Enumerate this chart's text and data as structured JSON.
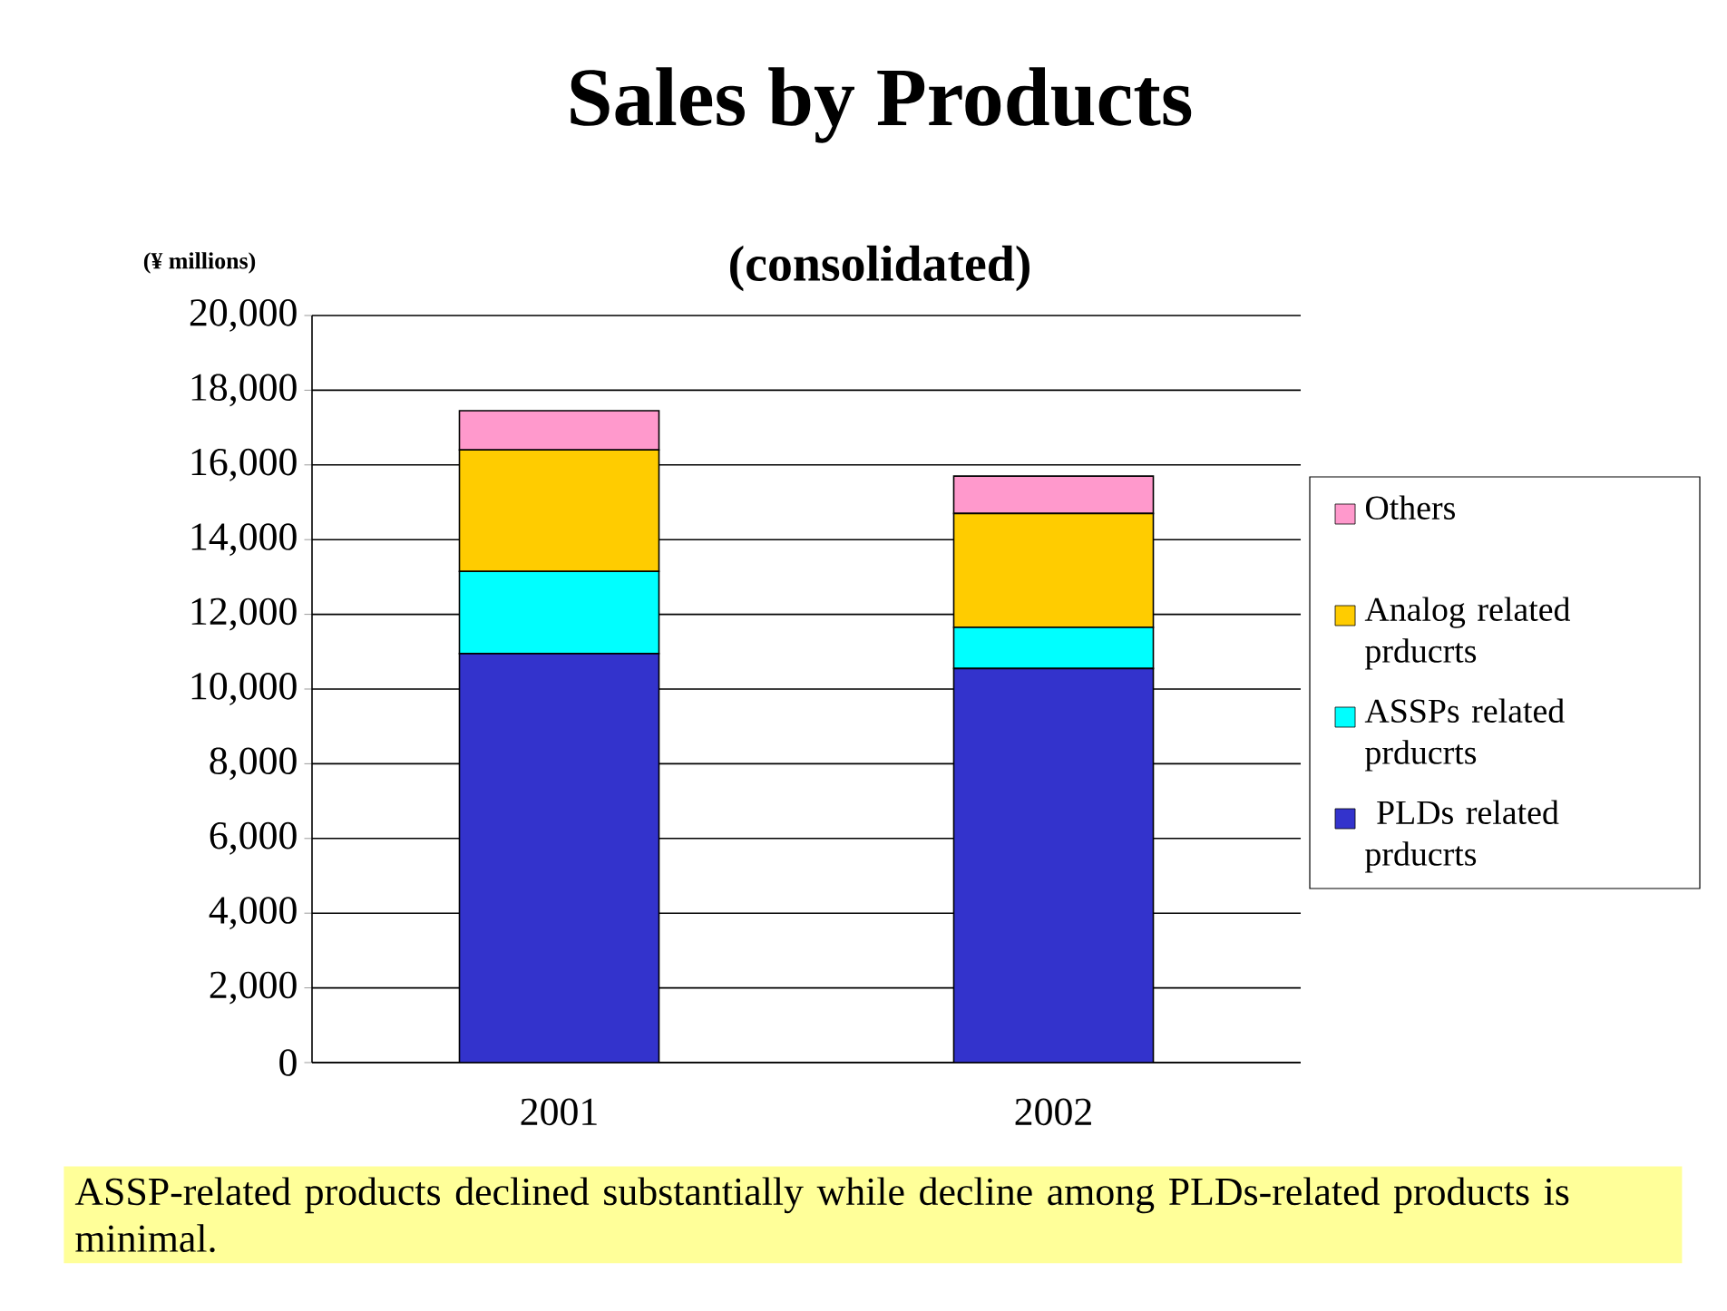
{
  "chart_data": {
    "type": "bar",
    "stacked": true,
    "title": "Sales by Products",
    "subtitle": "(consolidated)",
    "ylabel": "(¥ millions)",
    "categories": [
      "2001",
      "2002"
    ],
    "series": [
      {
        "name": " PLDs related prducrts",
        "color": "#3333cc",
        "values": [
          10950,
          10550
        ]
      },
      {
        "name": "ASSPs related prducrts",
        "color": "#00ffff",
        "values": [
          2200,
          1100
        ]
      },
      {
        "name": "Analog related prducrts",
        "color": "#ffcc00",
        "values": [
          3250,
          3050
        ]
      },
      {
        "name": "Others",
        "color": "#ff99cc",
        "values": [
          1050,
          1000
        ]
      }
    ],
    "ylim": [
      0,
      20000
    ],
    "yticks": [
      {
        "value": 0,
        "label": "0"
      },
      {
        "value": 2000,
        "label": "2,000"
      },
      {
        "value": 4000,
        "label": "4,000"
      },
      {
        "value": 6000,
        "label": "6,000"
      },
      {
        "value": 8000,
        "label": "8,000"
      },
      {
        "value": 10000,
        "label": "10,000"
      },
      {
        "value": 12000,
        "label": "12,000"
      },
      {
        "value": 14000,
        "label": "14,000"
      },
      {
        "value": 16000,
        "label": "16,000"
      },
      {
        "value": 18000,
        "label": "18,000"
      },
      {
        "value": 20000,
        "label": "20,000"
      }
    ],
    "grid": "y",
    "legend": "right",
    "annotations": [
      "ASSP-related products declined substantially while decline among PLDs-related products is minimal."
    ]
  }
}
